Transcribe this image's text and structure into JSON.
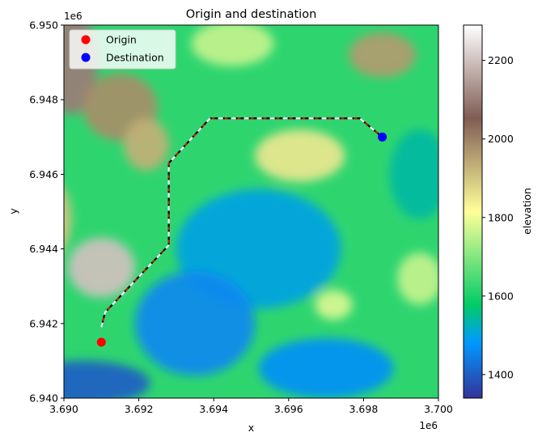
{
  "chart_data": {
    "type": "heatmap",
    "title": "Origin and destination",
    "xlabel": "x",
    "ylabel": "y",
    "x_offset_label": "1e6",
    "y_offset_label": "1e6",
    "xlim": [
      3.69,
      3.7
    ],
    "ylim": [
      6.94,
      6.95
    ],
    "xticks": [
      3.69,
      3.692,
      3.694,
      3.696,
      3.698,
      3.7
    ],
    "xtick_labels": [
      "3.690",
      "3.692",
      "3.694",
      "3.696",
      "3.698",
      "3.700"
    ],
    "yticks": [
      6.94,
      6.942,
      6.944,
      6.946,
      6.948,
      6.95
    ],
    "ytick_labels": [
      "6.940",
      "6.942",
      "6.944",
      "6.946",
      "6.948",
      "6.950"
    ],
    "colorbar": {
      "label": "elevation",
      "range": [
        1340,
        2290
      ],
      "ticks": [
        1400,
        1600,
        1800,
        2000,
        2200
      ],
      "tick_labels": [
        "1400",
        "1600",
        "1800",
        "2000",
        "2200"
      ],
      "colormap": "terrain"
    },
    "legend": {
      "placement": "top-left",
      "entries": [
        {
          "label": "Origin",
          "color": "#ff0000"
        },
        {
          "label": "Destination",
          "color": "#0000ff"
        }
      ]
    },
    "points": [
      {
        "name": "Origin",
        "x": 3.691,
        "y": 6.9415,
        "color": "#ff0000"
      },
      {
        "name": "Destination",
        "x": 3.6985,
        "y": 6.947,
        "color": "#0000ff"
      }
    ],
    "route": [
      [
        3.691,
        6.9419
      ],
      [
        3.6911,
        6.9423
      ],
      [
        3.6928,
        6.9441
      ],
      [
        3.6928,
        6.9463
      ],
      [
        3.6939,
        6.9475
      ],
      [
        3.6979,
        6.9475
      ],
      [
        3.6985,
        6.947
      ]
    ],
    "terrain_features": [
      {
        "x": 3.6902,
        "y": 6.949,
        "elev": 2100,
        "sx": 0.0007,
        "sy": 0.0014
      },
      {
        "x": 3.6915,
        "y": 6.9478,
        "elev": 1980,
        "sx": 0.001,
        "sy": 0.0009
      },
      {
        "x": 3.6922,
        "y": 6.9468,
        "elev": 1930,
        "sx": 0.0006,
        "sy": 0.0007
      },
      {
        "x": 3.691,
        "y": 6.9435,
        "elev": 2200,
        "sx": 0.0009,
        "sy": 0.0008
      },
      {
        "x": 3.6897,
        "y": 6.9448,
        "elev": 1900,
        "sx": 0.0005,
        "sy": 0.001
      },
      {
        "x": 3.6985,
        "y": 6.9492,
        "elev": 1960,
        "sx": 0.0009,
        "sy": 0.0006
      },
      {
        "x": 3.6963,
        "y": 6.9465,
        "elev": 1850,
        "sx": 0.0012,
        "sy": 0.0007
      },
      {
        "x": 3.6945,
        "y": 6.9495,
        "elev": 1760,
        "sx": 0.0011,
        "sy": 0.0006
      },
      {
        "x": 3.6952,
        "y": 6.944,
        "elev": 1500,
        "sx": 0.0022,
        "sy": 0.0016
      },
      {
        "x": 3.6935,
        "y": 6.942,
        "elev": 1460,
        "sx": 0.0016,
        "sy": 0.0014
      },
      {
        "x": 3.6905,
        "y": 6.9404,
        "elev": 1400,
        "sx": 0.0018,
        "sy": 0.0006
      },
      {
        "x": 3.697,
        "y": 6.9408,
        "elev": 1470,
        "sx": 0.0018,
        "sy": 0.0008
      },
      {
        "x": 3.6995,
        "y": 6.946,
        "elev": 1540,
        "sx": 0.0008,
        "sy": 0.0012
      },
      {
        "x": 3.6972,
        "y": 6.9425,
        "elev": 1780,
        "sx": 0.0005,
        "sy": 0.0004
      },
      {
        "x": 3.6995,
        "y": 6.9432,
        "elev": 1760,
        "sx": 0.0006,
        "sy": 0.0007
      }
    ]
  }
}
